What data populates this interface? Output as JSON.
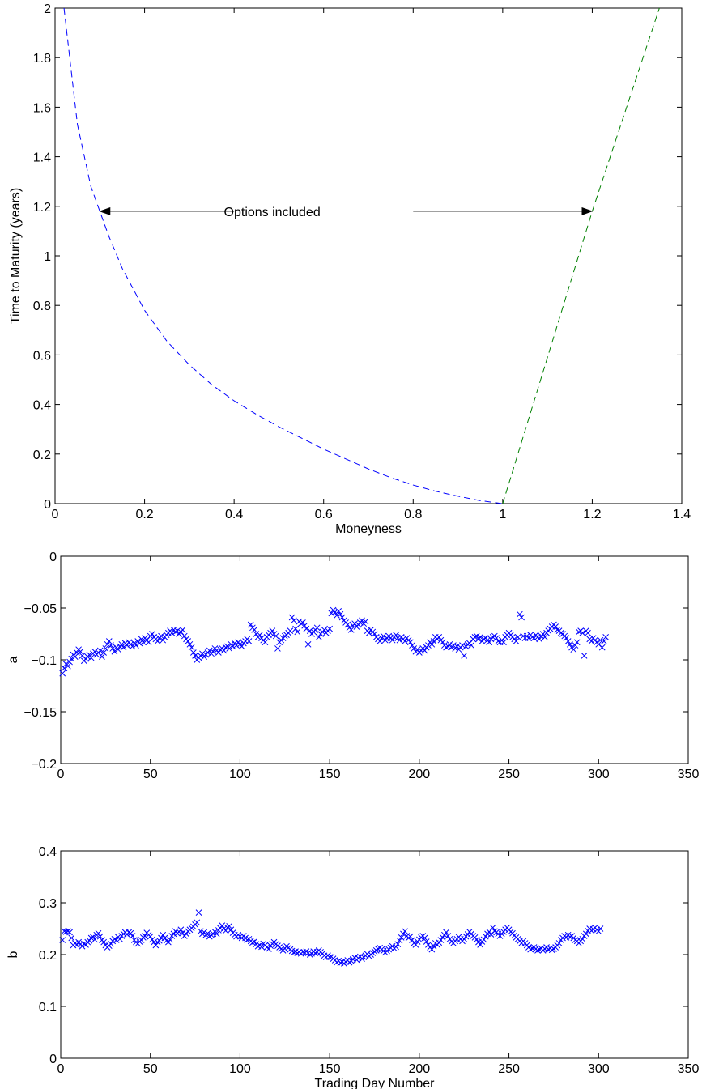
{
  "chart_data": [
    {
      "type": "line",
      "title": "",
      "xlabel": "Moneyness",
      "ylabel": "Time to Maturity (years)",
      "xlim": [
        0,
        1.4
      ],
      "ylim": [
        0,
        2
      ],
      "xticks": [
        0,
        0.2,
        0.4,
        0.6,
        0.8,
        1,
        1.2,
        1.4
      ],
      "xtick_labels": [
        "0",
        "0.2",
        "0.4",
        "0.6",
        "0.8",
        "1",
        "1.2",
        "1.4"
      ],
      "yticks": [
        0,
        0.2,
        0.4,
        0.6,
        0.8,
        1,
        1.2,
        1.4,
        1.6,
        1.8,
        2
      ],
      "ytick_labels": [
        "0",
        "0.2",
        "0.4",
        "0.6",
        "0.8",
        "1",
        "1.2",
        "1.4",
        "1.6",
        "1.8",
        "2"
      ],
      "grid": false,
      "series": [
        {
          "color": "#0000ff",
          "linestyle": "dashed",
          "x": [
            0.02,
            0.05,
            0.08,
            0.1,
            0.12,
            0.15,
            0.2,
            0.25,
            0.3,
            0.35,
            0.4,
            0.45,
            0.5,
            0.55,
            0.6,
            0.65,
            0.7,
            0.75,
            0.8,
            0.85,
            0.9,
            0.95,
            1.0
          ],
          "y": [
            2.0,
            1.53,
            1.28,
            1.18,
            1.08,
            0.95,
            0.78,
            0.655,
            0.56,
            0.48,
            0.415,
            0.36,
            0.31,
            0.265,
            0.22,
            0.18,
            0.14,
            0.105,
            0.075,
            0.05,
            0.03,
            0.012,
            0.0
          ]
        },
        {
          "color": "#008000",
          "linestyle": "dashed",
          "x": [
            1.0,
            1.2,
            1.35
          ],
          "y": [
            0.0,
            1.18,
            2.0
          ]
        }
      ],
      "annotations": [
        {
          "text": "Options included",
          "x": 0.485,
          "y": 1.18,
          "arrows": [
            {
              "from_x": 0.4,
              "to_x": 0.1,
              "y": 1.18
            },
            {
              "from_x": 0.8,
              "to_x": 1.2,
              "y": 1.18
            }
          ]
        }
      ]
    },
    {
      "type": "scatter",
      "title": "",
      "xlabel": "",
      "ylabel": "a",
      "marker": "x",
      "color": "#0000ff",
      "xlim": [
        0,
        350
      ],
      "ylim": [
        -0.2,
        0
      ],
      "xticks": [
        0,
        50,
        100,
        150,
        200,
        250,
        300,
        350
      ],
      "xtick_labels": [
        "0",
        "50",
        "100",
        "150",
        "200",
        "250",
        "300",
        "350"
      ],
      "yticks": [
        -0.2,
        -0.15,
        -0.1,
        -0.05,
        0
      ],
      "ytick_labels": [
        "−0.2",
        "−0.15",
        "−0.1",
        "−0.05",
        "0"
      ],
      "grid": false,
      "x_start": 1,
      "values": [
        -0.113,
        -0.108,
        -0.104,
        -0.106,
        -0.102,
        -0.099,
        -0.095,
        -0.097,
        -0.093,
        -0.09,
        -0.092,
        -0.096,
        -0.101,
        -0.099,
        -0.097,
        -0.095,
        -0.098,
        -0.094,
        -0.092,
        -0.095,
        -0.093,
        -0.091,
        -0.097,
        -0.093,
        -0.089,
        -0.085,
        -0.082,
        -0.086,
        -0.089,
        -0.092,
        -0.088,
        -0.09,
        -0.087,
        -0.085,
        -0.088,
        -0.084,
        -0.086,
        -0.083,
        -0.085,
        -0.087,
        -0.084,
        -0.086,
        -0.082,
        -0.084,
        -0.08,
        -0.083,
        -0.079,
        -0.081,
        -0.083,
        -0.077,
        -0.075,
        -0.078,
        -0.08,
        -0.082,
        -0.079,
        -0.077,
        -0.081,
        -0.078,
        -0.076,
        -0.074,
        -0.072,
        -0.074,
        -0.071,
        -0.073,
        -0.072,
        -0.075,
        -0.073,
        -0.071,
        -0.077,
        -0.08,
        -0.082,
        -0.085,
        -0.088,
        -0.093,
        -0.096,
        -0.1,
        -0.098,
        -0.096,
        -0.094,
        -0.097,
        -0.095,
        -0.093,
        -0.091,
        -0.094,
        -0.092,
        -0.089,
        -0.091,
        -0.093,
        -0.09,
        -0.089,
        -0.091,
        -0.088,
        -0.087,
        -0.089,
        -0.085,
        -0.087,
        -0.084,
        -0.086,
        -0.083,
        -0.085,
        -0.087,
        -0.084,
        -0.082,
        -0.08,
        -0.082,
        -0.066,
        -0.069,
        -0.071,
        -0.075,
        -0.078,
        -0.076,
        -0.079,
        -0.081,
        -0.083,
        -0.078,
        -0.076,
        -0.074,
        -0.072,
        -0.075,
        -0.077,
        -0.089,
        -0.083,
        -0.081,
        -0.079,
        -0.077,
        -0.076,
        -0.074,
        -0.072,
        -0.059,
        -0.062,
        -0.07,
        -0.073,
        -0.063,
        -0.065,
        -0.064,
        -0.067,
        -0.07,
        -0.085,
        -0.072,
        -0.075,
        -0.073,
        -0.071,
        -0.069,
        -0.078,
        -0.075,
        -0.073,
        -0.071,
        -0.074,
        -0.072,
        -0.07,
        -0.055,
        -0.052,
        -0.054,
        -0.057,
        -0.053,
        -0.056,
        -0.059,
        -0.062,
        -0.064,
        -0.066,
        -0.069,
        -0.071,
        -0.067,
        -0.065,
        -0.068,
        -0.066,
        -0.064,
        -0.062,
        -0.065,
        -0.063,
        -0.072,
        -0.074,
        -0.071,
        -0.073,
        -0.075,
        -0.078,
        -0.08,
        -0.082,
        -0.079,
        -0.077,
        -0.081,
        -0.079,
        -0.077,
        -0.079,
        -0.081,
        -0.078,
        -0.076,
        -0.079,
        -0.081,
        -0.078,
        -0.08,
        -0.082,
        -0.079,
        -0.081,
        -0.083,
        -0.086,
        -0.089,
        -0.092,
        -0.09,
        -0.093,
        -0.091,
        -0.089,
        -0.091,
        -0.088,
        -0.086,
        -0.083,
        -0.085,
        -0.082,
        -0.078,
        -0.08,
        -0.078,
        -0.081,
        -0.083,
        -0.086,
        -0.088,
        -0.087,
        -0.085,
        -0.088,
        -0.086,
        -0.089,
        -0.087,
        -0.09,
        -0.088,
        -0.086,
        -0.096,
        -0.087,
        -0.085,
        -0.084,
        -0.086,
        -0.08,
        -0.078,
        -0.077,
        -0.08,
        -0.078,
        -0.082,
        -0.08,
        -0.079,
        -0.081,
        -0.083,
        -0.08,
        -0.078,
        -0.077,
        -0.079,
        -0.082,
        -0.083,
        -0.081,
        -0.083,
        -0.078,
        -0.076,
        -0.074,
        -0.076,
        -0.078,
        -0.08,
        -0.082,
        -0.078,
        -0.056,
        -0.059,
        -0.077,
        -0.079,
        -0.077,
        -0.079,
        -0.076,
        -0.078,
        -0.079,
        -0.076,
        -0.078,
        -0.08,
        -0.077,
        -0.075,
        -0.078,
        -0.074,
        -0.072,
        -0.07,
        -0.068,
        -0.066,
        -0.068,
        -0.071,
        -0.072,
        -0.074,
        -0.075,
        -0.077,
        -0.079,
        -0.082,
        -0.085,
        -0.088,
        -0.09,
        -0.086,
        -0.083,
        -0.073,
        -0.072,
        -0.074,
        -0.096,
        -0.072,
        -0.074,
        -0.08,
        -0.082,
        -0.079,
        -0.081,
        -0.083,
        -0.085,
        -0.081,
        -0.088,
        -0.082,
        -0.078
      ]
    },
    {
      "type": "scatter",
      "title": "",
      "xlabel": "Trading Day Number",
      "ylabel": "b",
      "marker": "x",
      "color": "#0000ff",
      "xlim": [
        0,
        350
      ],
      "ylim": [
        0,
        0.4
      ],
      "xticks": [
        0,
        50,
        100,
        150,
        200,
        250,
        300,
        350
      ],
      "xtick_labels": [
        "0",
        "50",
        "100",
        "150",
        "200",
        "250",
        "300",
        "350"
      ],
      "yticks": [
        0,
        0.1,
        0.2,
        0.3,
        0.4
      ],
      "ytick_labels": [
        "0",
        "0.1",
        "0.2",
        "0.3",
        "0.4"
      ],
      "grid": false,
      "x_start": 1,
      "values": [
        0.228,
        0.245,
        0.244,
        0.245,
        0.243,
        0.232,
        0.218,
        0.222,
        0.219,
        0.224,
        0.22,
        0.216,
        0.221,
        0.219,
        0.224,
        0.227,
        0.232,
        0.234,
        0.229,
        0.238,
        0.241,
        0.235,
        0.228,
        0.224,
        0.218,
        0.214,
        0.217,
        0.221,
        0.226,
        0.23,
        0.228,
        0.234,
        0.23,
        0.236,
        0.24,
        0.243,
        0.239,
        0.243,
        0.241,
        0.236,
        0.228,
        0.224,
        0.221,
        0.225,
        0.228,
        0.233,
        0.236,
        0.242,
        0.238,
        0.235,
        0.229,
        0.224,
        0.218,
        0.224,
        0.227,
        0.232,
        0.238,
        0.232,
        0.227,
        0.224,
        0.229,
        0.236,
        0.24,
        0.245,
        0.241,
        0.244,
        0.248,
        0.242,
        0.236,
        0.24,
        0.245,
        0.248,
        0.251,
        0.254,
        0.258,
        0.262,
        0.281,
        0.245,
        0.24,
        0.243,
        0.238,
        0.241,
        0.235,
        0.238,
        0.24,
        0.244,
        0.24,
        0.247,
        0.251,
        0.256,
        0.25,
        0.246,
        0.252,
        0.255,
        0.248,
        0.242,
        0.238,
        0.235,
        0.238,
        0.235,
        0.232,
        0.236,
        0.232,
        0.228,
        0.23,
        0.226,
        0.223,
        0.225,
        0.22,
        0.216,
        0.218,
        0.215,
        0.221,
        0.218,
        0.214,
        0.211,
        0.217,
        0.221,
        0.224,
        0.22,
        0.217,
        0.214,
        0.211,
        0.208,
        0.212,
        0.216,
        0.213,
        0.21,
        0.207,
        0.204,
        0.206,
        0.203,
        0.205,
        0.202,
        0.205,
        0.204,
        0.206,
        0.203,
        0.2,
        0.202,
        0.206,
        0.203,
        0.205,
        0.208,
        0.205,
        0.202,
        0.198,
        0.195,
        0.198,
        0.195,
        0.196,
        0.192,
        0.189,
        0.185,
        0.188,
        0.184,
        0.186,
        0.183,
        0.186,
        0.189,
        0.185,
        0.188,
        0.191,
        0.194,
        0.19,
        0.193,
        0.196,
        0.192,
        0.195,
        0.198,
        0.201,
        0.197,
        0.2,
        0.203,
        0.206,
        0.208,
        0.211,
        0.213,
        0.21,
        0.207,
        0.204,
        0.207,
        0.21,
        0.213,
        0.216,
        0.212,
        0.215,
        0.22,
        0.227,
        0.233,
        0.24,
        0.245,
        0.236,
        0.232,
        0.235,
        0.228,
        0.222,
        0.219,
        0.225,
        0.229,
        0.233,
        0.236,
        0.232,
        0.225,
        0.219,
        0.214,
        0.21,
        0.216,
        0.222,
        0.219,
        0.223,
        0.228,
        0.233,
        0.238,
        0.243,
        0.236,
        0.23,
        0.225,
        0.222,
        0.226,
        0.23,
        0.234,
        0.23,
        0.226,
        0.23,
        0.235,
        0.239,
        0.244,
        0.24,
        0.236,
        0.233,
        0.229,
        0.224,
        0.219,
        0.225,
        0.229,
        0.235,
        0.24,
        0.244,
        0.239,
        0.252,
        0.245,
        0.243,
        0.24,
        0.236,
        0.24,
        0.244,
        0.248,
        0.252,
        0.248,
        0.244,
        0.241,
        0.237,
        0.233,
        0.23,
        0.226,
        0.222,
        0.226,
        0.222,
        0.218,
        0.214,
        0.21,
        0.212,
        0.214,
        0.211,
        0.208,
        0.21,
        0.212,
        0.208,
        0.211,
        0.214,
        0.21,
        0.212,
        0.209,
        0.211,
        0.214,
        0.218,
        0.222,
        0.228,
        0.232,
        0.236,
        0.233,
        0.238,
        0.234,
        0.236,
        0.232,
        0.228,
        0.226,
        0.222,
        0.226,
        0.23,
        0.236,
        0.24,
        0.246,
        0.25,
        0.246,
        0.249,
        0.252,
        0.248,
        0.245,
        0.25
      ]
    }
  ]
}
